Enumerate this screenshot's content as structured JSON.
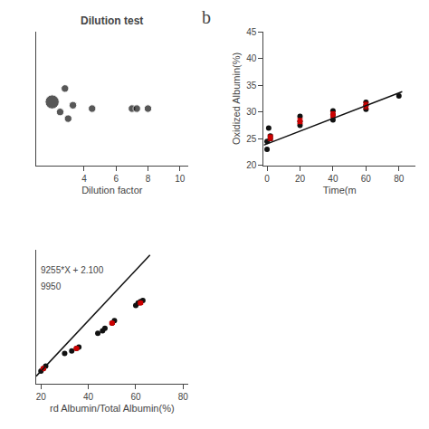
{
  "chart_data": [
    {
      "type": "scatter",
      "title": "Dilution test",
      "xlabel": "Dilution factor",
      "xlim": [
        1,
        10.5
      ],
      "xticks": [
        4,
        6,
        8,
        10
      ],
      "ylim": [
        -0.8,
        1.2
      ],
      "yticks": [],
      "tick_labels": "x",
      "grid": false,
      "series": [
        {
          "type": "scatter",
          "color": "#111111",
          "x": [
            2.0,
            2.5,
            2.8,
            3.0,
            3.3,
            4.5,
            7.0,
            7.3,
            8.0
          ],
          "values": [
            0.15,
            0.0,
            0.35,
            -0.1,
            0.1,
            0.05,
            0.05,
            0.05,
            0.05
          ],
          "sizes": [
            120,
            35,
            35,
            35,
            35,
            35,
            35,
            35,
            35
          ]
        }
      ]
    },
    {
      "type": "scatter",
      "xlabel": "Time(m",
      "ylabel": "Oxidized Albumin(%)",
      "annotations": [
        "b"
      ],
      "xlim": [
        -2,
        90
      ],
      "xticks": [
        0,
        20,
        40,
        60,
        80
      ],
      "ylim": [
        20,
        45
      ],
      "yticks": [
        20,
        25,
        30,
        35,
        40,
        45
      ],
      "grid": false,
      "series": [
        {
          "type": "scatter",
          "color": "#111111",
          "x": [
            0,
            0,
            1,
            2,
            2,
            20,
            20,
            20,
            40,
            40,
            40,
            60,
            60,
            60,
            80
          ],
          "values": [
            23,
            24.5,
            27,
            25,
            25.5,
            27.5,
            28.2,
            29.2,
            28.5,
            29.5,
            30.2,
            30.5,
            31.2,
            31.8,
            33.0
          ]
        },
        {
          "type": "scatter",
          "color": "#cc0000",
          "x": [
            2,
            20,
            40,
            60
          ],
          "values": [
            25.2,
            28.3,
            29.5,
            31.2
          ],
          "errors": [
            0.5,
            0.5,
            0.5,
            0.6
          ]
        },
        {
          "type": "line",
          "color": "#111111",
          "x": [
            -2,
            82
          ],
          "values": [
            23.8,
            33.8
          ]
        }
      ]
    },
    {
      "type": "scatter",
      "xlabel": "rd Albumin/Total Albumin(%)",
      "annotations": [
        "9255*X + 2.100",
        "9950"
      ],
      "xlim": [
        18,
        82
      ],
      "xticks": [
        20,
        40,
        60,
        80
      ],
      "ylim": [
        15,
        68
      ],
      "yticks": [],
      "tick_labels": "x",
      "grid": false,
      "series": [
        {
          "type": "scatter",
          "color": "#111111",
          "x": [
            20,
            21,
            22,
            30,
            33,
            35,
            36,
            44,
            46,
            47,
            50,
            51,
            60,
            61,
            62,
            63
          ],
          "values": [
            20,
            21,
            22,
            27,
            28,
            29,
            29.5,
            35,
            36,
            37,
            39,
            40,
            46,
            47,
            47.5,
            48
          ]
        },
        {
          "type": "scatter",
          "color": "#cc0000",
          "x": [
            21,
            35,
            50,
            62
          ],
          "values": [
            21.0,
            29.0,
            39.0,
            47.0
          ],
          "errors": [
            0.5,
            0.4,
            0.5,
            0.5
          ]
        },
        {
          "type": "line",
          "color": "#111111",
          "x": [
            18,
            66
          ],
          "values": [
            18,
            66
          ]
        }
      ]
    }
  ]
}
